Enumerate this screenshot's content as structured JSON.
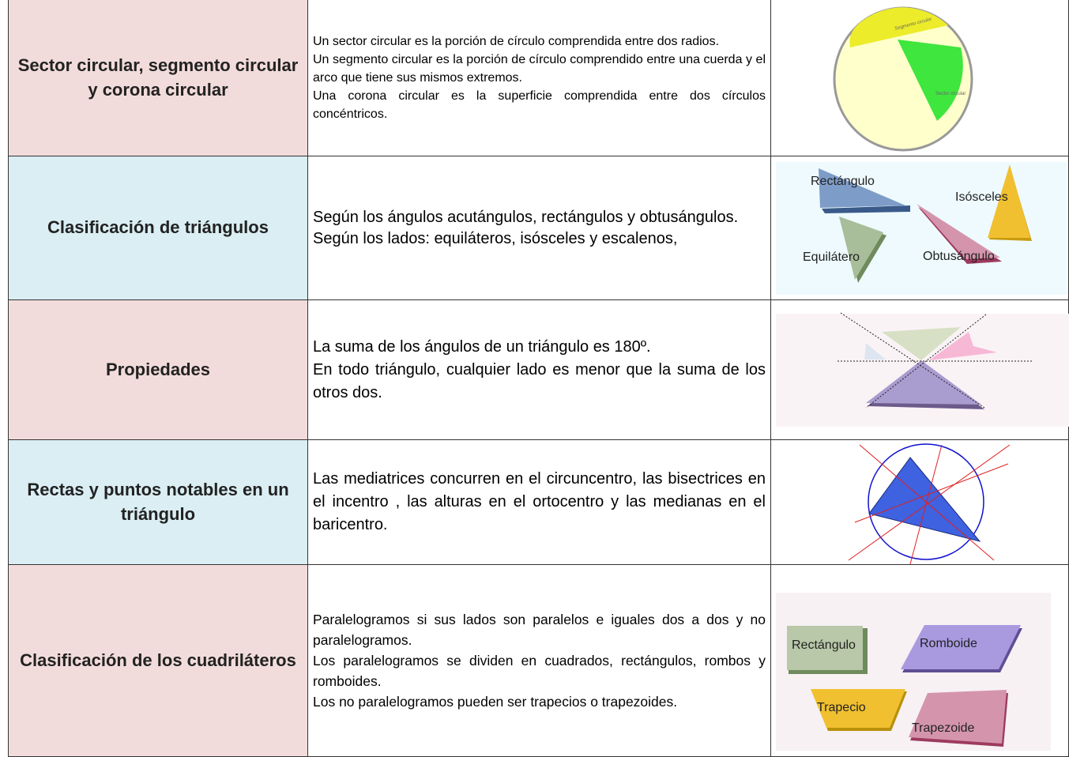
{
  "table": {
    "rows": [
      {
        "topic": "Sector circular, segmento circular y corona circular",
        "description": [
          "Un sector circular es la porción de círculo comprendida entre dos radios.",
          "Un segmento circular es la porción de círculo comprendido entre una cuerda y el arco que tiene sus mismos extremos.",
          "Una corona circular es la superficie comprendida entre dos círculos concéntricos."
        ],
        "figure_labels": [
          "Segmento circular",
          "Sector circular"
        ]
      },
      {
        "topic": "Clasificación de triángulos",
        "description": [
          "Según los ángulos  acutángulos, rectángulos y obtusángulos.",
          "Según los lados: equiláteros, isósceles y escalenos,"
        ],
        "figure_labels": [
          "Rectángulo",
          "Isósceles",
          "Equilátero",
          "Obtusángulo"
        ]
      },
      {
        "topic": "Propiedades",
        "description": [
          "La suma de los ángulos de un triángulo es 180º.",
          "En todo triángulo, cualquier lado es menor que la suma de los otros dos."
        ]
      },
      {
        "topic": "Rectas y puntos notables en un triángulo",
        "description": [
          "Las mediatrices concurren en el circuncentro, las bisectrices en el incentro , las alturas en el ortocentro  y las medianas en el  baricentro."
        ]
      },
      {
        "topic": "Clasificación de los cuadriláteros",
        "description": [
          "Paralelogramos si sus lados son paralelos e iguales dos a dos y no paralelogramos.",
          "Los paralelogramos se dividen en cuadrados, rectángulos, rombos y romboides.",
          "Los no paralelogramos pueden ser trapecios o trapezoides."
        ],
        "figure_labels": [
          "Rectángulo",
          "Romboide",
          "Trapecio",
          "Trapezoide"
        ]
      }
    ]
  }
}
